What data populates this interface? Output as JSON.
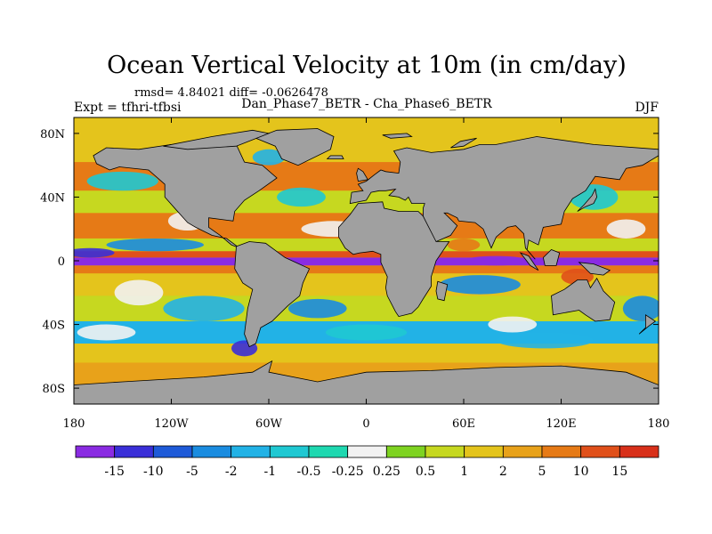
{
  "title": "Ocean Vertical Velocity at 10m (in cm/day)",
  "stats": "rmsd= 4.84021 diff= -0.0626478",
  "experiment": "Expt = tfhri-tfbsi",
  "comparison": "Dan_Phase7_BETR - Cha_Phase6_BETR",
  "season": "DJF",
  "chart_data": {
    "type": "heatmap",
    "title": "Ocean Vertical Velocity at 10m (in cm/day)",
    "units": "cm/day",
    "xlabel": "",
    "ylabel": "",
    "x_ticks": [
      "180",
      "120W",
      "60W",
      "0",
      "60E",
      "120E",
      "180"
    ],
    "x_tick_values": [
      -180,
      -120,
      -60,
      0,
      60,
      120,
      180
    ],
    "y_ticks": [
      "80N",
      "40N",
      "0",
      "40S",
      "80S"
    ],
    "y_tick_values": [
      80,
      40,
      0,
      -40,
      -80
    ],
    "lon_range": [
      -180,
      180
    ],
    "lat_range": [
      -90,
      90
    ],
    "colorbar": {
      "levels": [
        "-15",
        "-10",
        "-5",
        "-2",
        "-1",
        "-0.5",
        "-0.25",
        "0.25",
        "0.5",
        "1",
        "2",
        "5",
        "10",
        "15"
      ],
      "colors": [
        "#8A2BE2",
        "#3A2FD8",
        "#1E5AD8",
        "#1A8CE0",
        "#22B2E6",
        "#1FC8D2",
        "#1ED8B0",
        "#F2F2F2",
        "#7ED321",
        "#C6D820",
        "#E4C41C",
        "#E8A21A",
        "#E67A16",
        "#E0501A",
        "#D8301A"
      ]
    },
    "land_color": "#A0A0A0"
  }
}
